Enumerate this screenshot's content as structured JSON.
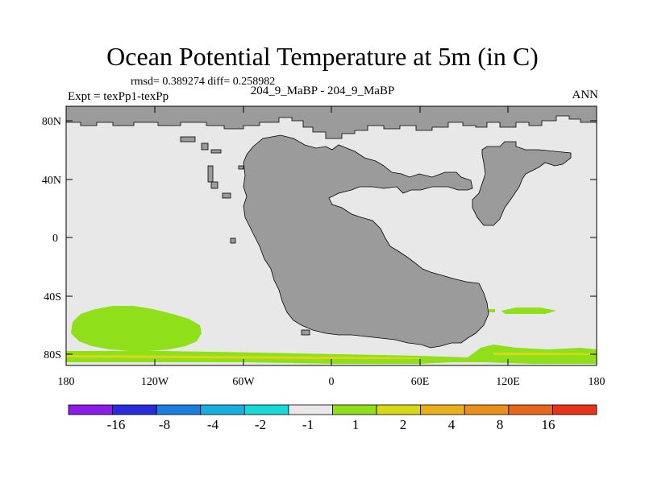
{
  "title": "Ocean Potential Temperature at 5m (in C)",
  "stats": "rmsd= 0.389274 diff= 0.258982",
  "left_label": "Expt = texPp1-texPp",
  "center_label": "204_9_MaBP - 204_9_MaBP",
  "right_label": "ANN",
  "lat_labels": [
    "80N",
    "40N",
    "0",
    "40S",
    "80S"
  ],
  "lon_labels": [
    "180",
    "120W",
    "60W",
    "0",
    "60E",
    "120E",
    "180"
  ],
  "colorbar": {
    "colors": [
      "#8c1ce8",
      "#2a2add",
      "#1a7de0",
      "#18aee0",
      "#18d8d8",
      "#e8e8e8",
      "#8fe01a",
      "#d8d818",
      "#e8b01a",
      "#e8901a",
      "#e8661a",
      "#e8321a"
    ],
    "labels": [
      "-16",
      "-8",
      "-4",
      "-2",
      "-1",
      "1",
      "2",
      "4",
      "8",
      "16"
    ]
  },
  "colors": {
    "ocean_background": "#e8e8e8",
    "land": "#9b9b9b",
    "anomaly_warm": "#8fe01a",
    "anomaly_hot": "#d8d818"
  }
}
